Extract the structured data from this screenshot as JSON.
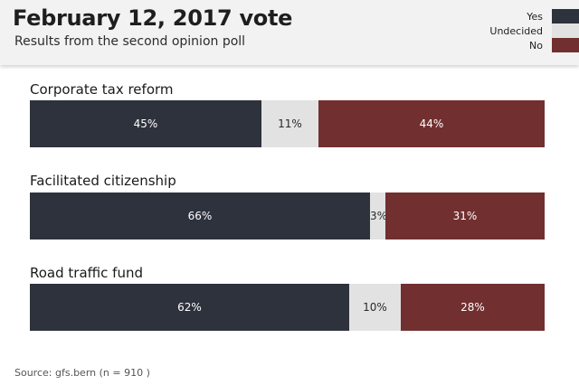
{
  "title": "February 12, 2017 vote",
  "subtitle": "Results from the second opinion poll",
  "source": "Source: gfs.bern (n = 910 )",
  "colors": {
    "yes": "#2e323d",
    "undecided": "#e2e2e2",
    "no": "#722f30"
  },
  "legend": [
    {
      "key": "yes",
      "label": "Yes"
    },
    {
      "key": "undecided",
      "label": "Undecided"
    },
    {
      "key": "no",
      "label": "No"
    }
  ],
  "chart_data": {
    "type": "bar",
    "orientation": "horizontal-stacked-100",
    "categories": [
      "Corporate tax reform",
      "Facilitated citizenship",
      "Road traffic fund"
    ],
    "series": [
      {
        "name": "Yes",
        "values": [
          45,
          66,
          62
        ],
        "labels": [
          "45%",
          "66%",
          "62%"
        ]
      },
      {
        "name": "Undecided",
        "values": [
          11,
          3,
          10
        ],
        "labels": [
          "11%",
          "3%",
          "10%"
        ]
      },
      {
        "name": "No",
        "values": [
          44,
          31,
          28
        ],
        "labels": [
          "44%",
          "31%",
          "28%"
        ]
      }
    ],
    "legend_position": "top-right"
  }
}
